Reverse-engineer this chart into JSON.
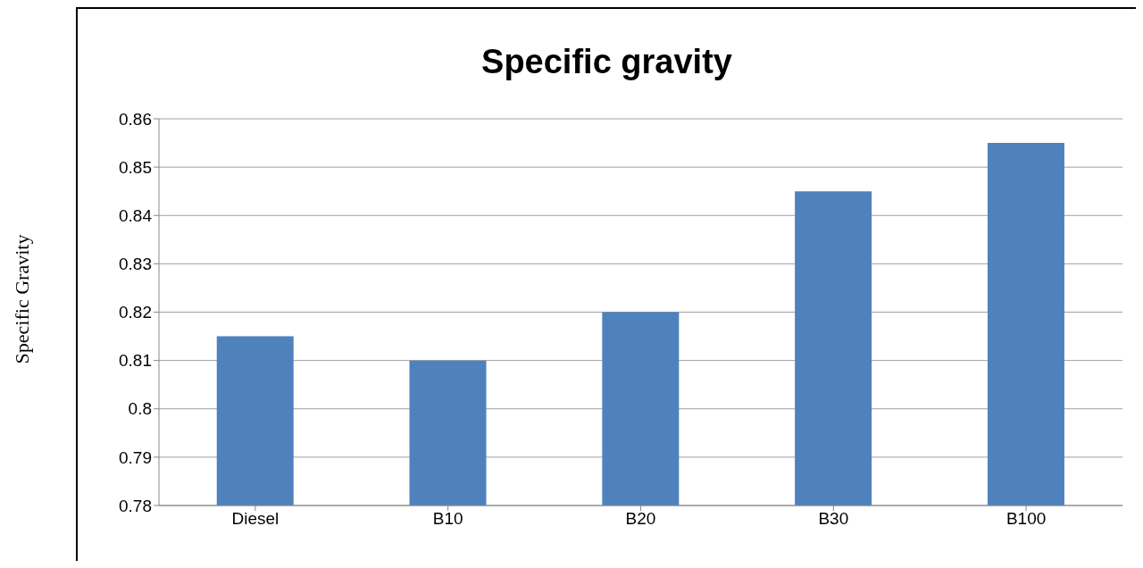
{
  "chart_data": {
    "type": "bar",
    "title": "Specific gravity",
    "ylabel": "Specific Gravity",
    "categories": [
      "Diesel",
      "B10",
      "B20",
      "B30",
      "B100"
    ],
    "values": [
      0.815,
      0.81,
      0.82,
      0.845,
      0.855
    ],
    "color": "#4f81bd",
    "ylim": [
      0.78,
      0.86
    ],
    "yticks": [
      0.78,
      0.79,
      0.8,
      0.81,
      0.82,
      0.83,
      0.84,
      0.85,
      0.86
    ],
    "grid": "y"
  }
}
